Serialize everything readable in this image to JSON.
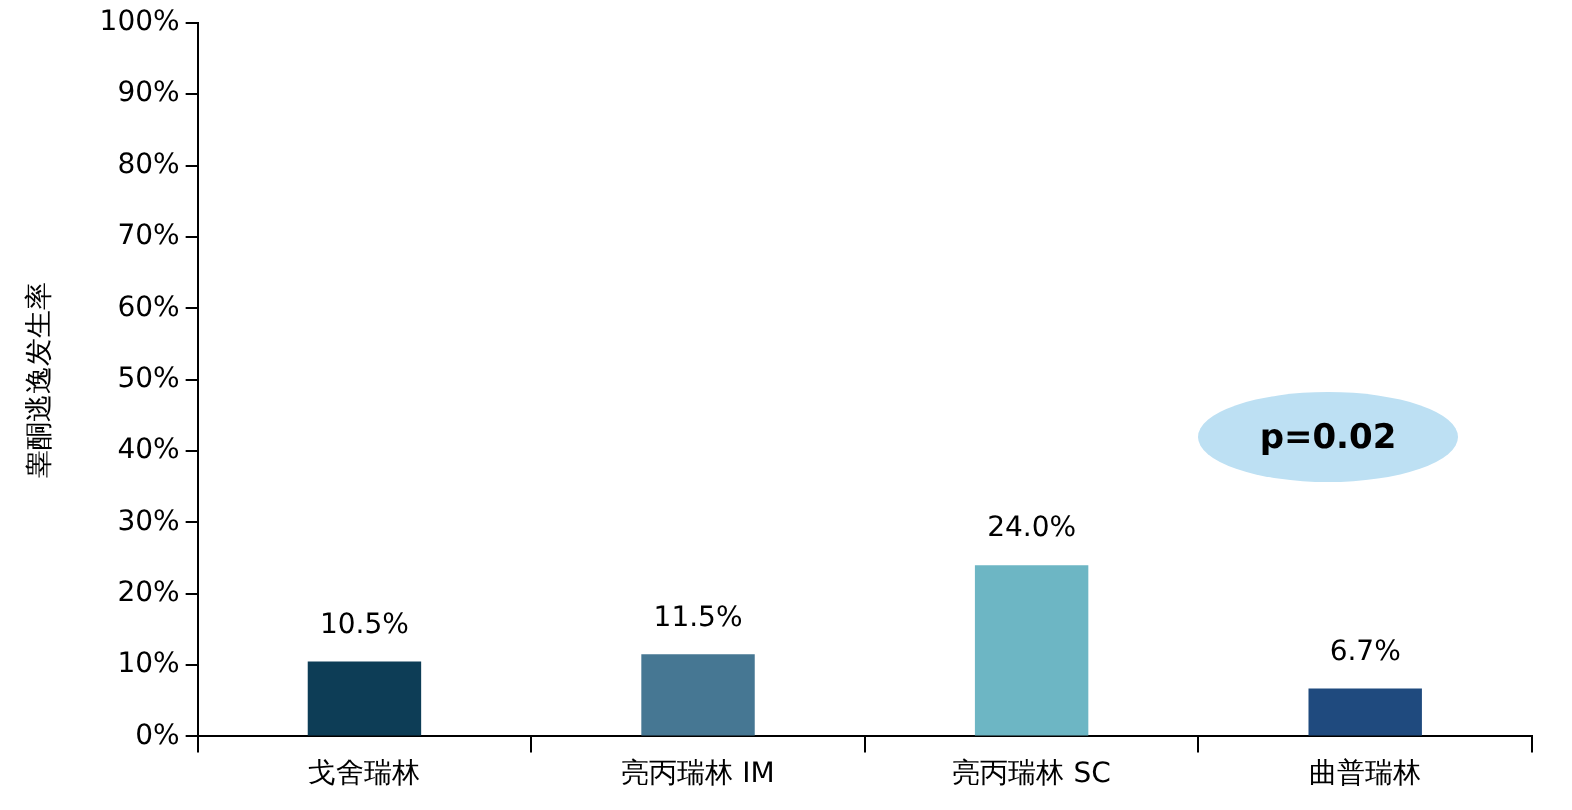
{
  "chart_data": {
    "type": "bar",
    "ylabel": "睾酮逃逸发生率",
    "categories": [
      "戈舍瑞林",
      "亮丙瑞林 IM",
      "亮丙瑞林 SC",
      "曲普瑞林"
    ],
    "values": [
      10.5,
      11.5,
      24.0,
      6.7
    ],
    "colors": [
      "#0d3d56",
      "#467793",
      "#6db6c4",
      "#1f4a7e"
    ],
    "value_labels": [
      "10.5%",
      "11.5%",
      "24.0%",
      "6.7%"
    ],
    "ylim": [
      0,
      100
    ],
    "yticks": [
      {
        "value": 0,
        "label": "0%"
      },
      {
        "value": 10,
        "label": "10%"
      },
      {
        "value": 20,
        "label": "20%"
      },
      {
        "value": 30,
        "label": "30%"
      },
      {
        "value": 40,
        "label": "40%"
      },
      {
        "value": 50,
        "label": "50%"
      },
      {
        "value": 60,
        "label": "60%"
      },
      {
        "value": 70,
        "label": "70%"
      },
      {
        "value": 80,
        "label": "80%"
      },
      {
        "value": 90,
        "label": "90%"
      },
      {
        "value": 100,
        "label": "100%"
      }
    ],
    "grid": false,
    "legend": false,
    "annotations": [
      "p=0.02"
    ]
  }
}
